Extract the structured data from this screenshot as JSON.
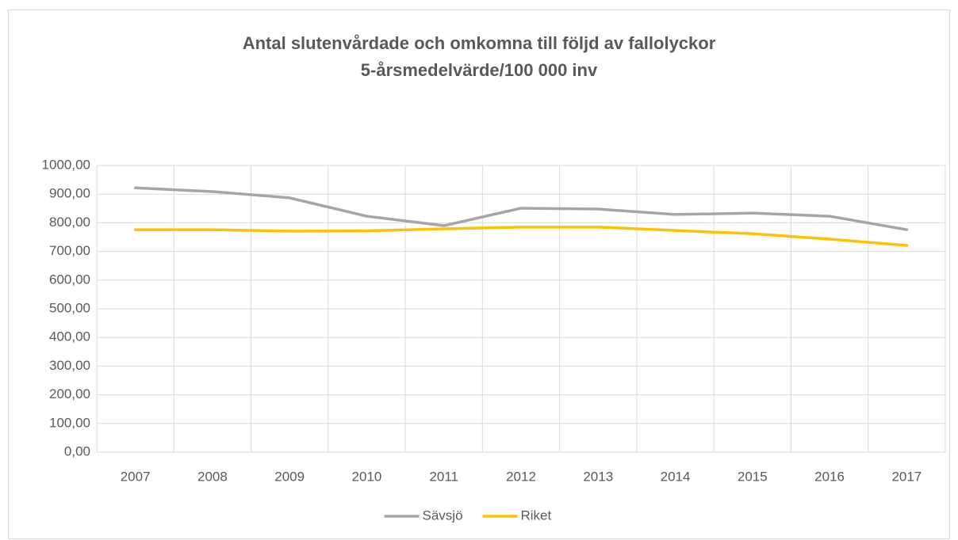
{
  "chart_data": {
    "type": "line",
    "title": "Antal slutenvårdade och omkomna till följd av fallolyckor",
    "subtitle": "5-årsmedelvärde/100 000 inv",
    "categories": [
      "2007",
      "2008",
      "2009",
      "2010",
      "2011",
      "2012",
      "2013",
      "2014",
      "2015",
      "2016",
      "2017"
    ],
    "series": [
      {
        "name": "Sävsjö",
        "color": "#a5a5a5",
        "values": [
          922,
          909,
          887,
          823,
          790,
          851,
          848,
          829,
          834,
          823,
          776
        ]
      },
      {
        "name": "Riket",
        "color": "#ffc000",
        "values": [
          776,
          776,
          771,
          772,
          779,
          785,
          785,
          773,
          762,
          743,
          721
        ]
      }
    ],
    "ylim": [
      0,
      1000
    ],
    "yticks": [
      {
        "value": 0,
        "label": "0,00"
      },
      {
        "value": 100,
        "label": "100,00"
      },
      {
        "value": 200,
        "label": "200,00"
      },
      {
        "value": 300,
        "label": "300,00"
      },
      {
        "value": 400,
        "label": "400,00"
      },
      {
        "value": 500,
        "label": "500,00"
      },
      {
        "value": 600,
        "label": "600,00"
      },
      {
        "value": 700,
        "label": "700,00"
      },
      {
        "value": 800,
        "label": "800,00"
      },
      {
        "value": 900,
        "label": "900,00"
      },
      {
        "value": 1000,
        "label": "1000,00"
      }
    ],
    "grid": true,
    "legend": "bottom"
  }
}
